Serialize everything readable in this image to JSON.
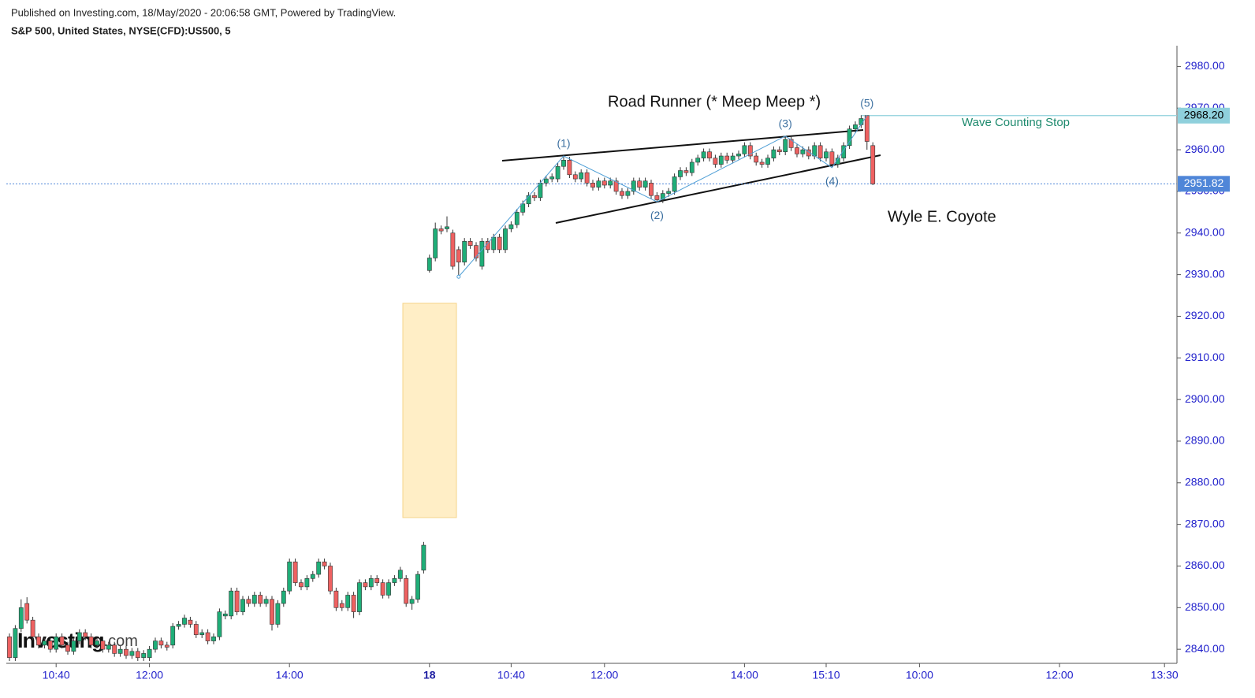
{
  "header": {
    "published": "Published on Investing.com, 18/May/2020 - 20:06:58 GMT, Powered by TradingView.",
    "symbol": "S&P 500, United States, NYSE(CFD):US500, 5"
  },
  "chart_data": {
    "type": "candlestick",
    "watermark": {
      "brand": "Investing",
      "suffix": ".com"
    },
    "up_color": "#1fae78",
    "down_color": "#ee6161",
    "ylim": [
      2837,
      2985
    ],
    "yticks": [
      {
        "value": 2840,
        "label": "2840.00"
      },
      {
        "value": 2850,
        "label": "2850.00"
      },
      {
        "value": 2860,
        "label": "2860.00"
      },
      {
        "value": 2870,
        "label": "2870.00"
      },
      {
        "value": 2880,
        "label": "2880.00"
      },
      {
        "value": 2890,
        "label": "2890.00"
      },
      {
        "value": 2900,
        "label": "2900.00"
      },
      {
        "value": 2910,
        "label": "2910.00"
      },
      {
        "value": 2920,
        "label": "2920.00"
      },
      {
        "value": 2930,
        "label": "2930.00"
      },
      {
        "value": 2940,
        "label": "2940.00"
      },
      {
        "value": 2950,
        "label": "2950.00"
      },
      {
        "value": 2960,
        "label": "2960.00"
      },
      {
        "value": 2970,
        "label": "2970.00"
      },
      {
        "value": 2980,
        "label": "2980.00"
      }
    ],
    "categories": [
      null,
      null,
      null,
      null,
      null,
      null,
      null,
      null,
      "10:40",
      null,
      null,
      null,
      null,
      null,
      null,
      null,
      null,
      null,
      null,
      null,
      null,
      null,
      null,
      null,
      "12:00",
      null,
      null,
      null,
      null,
      null,
      null,
      null,
      null,
      null,
      null,
      null,
      null,
      null,
      null,
      null,
      null,
      null,
      null,
      null,
      null,
      null,
      null,
      null,
      "14:00",
      null,
      null,
      null,
      null,
      null,
      null,
      null,
      null,
      null,
      null,
      null,
      null,
      null,
      null,
      null,
      null,
      null,
      null,
      null,
      null,
      null,
      null,
      null,
      "18",
      null,
      null,
      null,
      null,
      null,
      null,
      null,
      null,
      null,
      null,
      null,
      null,
      null,
      "10:40",
      null,
      null,
      null,
      null,
      null,
      null,
      null,
      null,
      null,
      null,
      null,
      null,
      null,
      null,
      null,
      "12:00",
      null,
      null,
      null,
      null,
      null,
      null,
      null,
      null,
      null,
      null,
      null,
      null,
      null,
      null,
      null,
      null,
      null,
      null,
      null,
      null,
      null,
      null,
      null,
      "14:00",
      null,
      null,
      null,
      null,
      null,
      null,
      null,
      null,
      null,
      null,
      null,
      null,
      null,
      "15:10",
      null,
      null,
      null,
      null,
      null,
      null,
      null,
      null,
      null,
      null,
      null,
      null,
      null,
      null,
      null,
      "10:00",
      null,
      null,
      null,
      null,
      null,
      null,
      null,
      null,
      null,
      null,
      null,
      null,
      null,
      null,
      null,
      null,
      null,
      null,
      null,
      null,
      null,
      null,
      null,
      "12:00",
      null,
      null,
      null,
      null,
      null,
      null,
      null,
      null,
      null,
      null,
      null,
      null,
      null,
      null,
      null,
      null,
      null,
      "13:30",
      null
    ],
    "open": [
      2843,
      2838,
      2845,
      2851,
      2847,
      2843,
      2841,
      2842,
      2840,
      2843,
      2841,
      2839.5,
      2842,
      2844,
      2843,
      2841,
      2842,
      2840,
      2841,
      2839,
      2840,
      2838.5,
      2839.5,
      2838,
      2838,
      2840,
      2842,
      2841,
      2841,
      2845.5,
      2846,
      2847,
      2846,
      2843.5,
      2844,
      2842,
      2843,
      2848,
      2848,
      2854,
      2849,
      2852,
      2851,
      2853,
      2851,
      2852,
      2846,
      2851,
      2854,
      2861,
      2856,
      2855,
      2857,
      2858,
      2861,
      2860,
      2854,
      2851,
      2850,
      2853,
      2849,
      2856,
      2855,
      2857,
      2856,
      2853,
      2856,
      2857,
      2857,
      2851,
      2852,
      2859,
      2931,
      2934,
      2941,
      2941,
      2940,
      2936,
      2933,
      2938,
      2937,
      2932,
      2938,
      2936,
      2939,
      2936,
      2941,
      2942,
      2945,
      2947,
      2949,
      2948.5,
      2952,
      2953,
      2953,
      2956,
      2957.5,
      2954,
      2953,
      2954.5,
      2952,
      2951,
      2952.5,
      2951.5,
      2952.5,
      2950,
      2949,
      2950,
      2952.5,
      2951,
      2952,
      2949,
      2948,
      2949.5,
      2950,
      2953.5,
      2955,
      2954.5,
      2957,
      2958,
      2959.5,
      2958,
      2956.5,
      2958.5,
      2957.5,
      2958.5,
      2959,
      2961,
      2958.5,
      2957,
      2956.5,
      2958,
      2960,
      2959.5,
      2962.5,
      2960.5,
      2959,
      2960,
      2958.5,
      2961,
      2958,
      2959.5,
      2956.5,
      2958,
      2961,
      2965,
      2966,
      2968.2,
      2961,
      null,
      null,
      null,
      null,
      null,
      null,
      null,
      null,
      null,
      null,
      null,
      null,
      null,
      null,
      null,
      null,
      null,
      null,
      null,
      null,
      null,
      null,
      null,
      null,
      null,
      null,
      null,
      null,
      null,
      null,
      null,
      null,
      null,
      null,
      null,
      null,
      null,
      null,
      null,
      null,
      null,
      null,
      null,
      null,
      null,
      null,
      null,
      null,
      null,
      null,
      null
    ],
    "high": [
      2843.8,
      2845.8,
      2852,
      2852.5,
      2847.8,
      2843.8,
      2842.8,
      2842.8,
      2843.8,
      2843.8,
      2841.8,
      2842.8,
      2844.8,
      2844.8,
      2843.8,
      2842.8,
      2842.8,
      2841.8,
      2841.8,
      2840.8,
      2840.8,
      2840.3,
      2840.3,
      2839.8,
      2840.8,
      2842.8,
      2842.8,
      2841.8,
      2846.3,
      2846.8,
      2848.3,
      2847.8,
      2846.8,
      2844.8,
      2844.8,
      2843.8,
      2849.8,
      2849.3,
      2854.8,
      2854.8,
      2852.8,
      2852.8,
      2853.8,
      2853.8,
      2852.8,
      2852.8,
      2851.8,
      2854.8,
      2861.8,
      2861.8,
      2856.8,
      2857.8,
      2858.8,
      2861.8,
      2861.8,
      2860.8,
      2854.8,
      2851.8,
      2853.8,
      2853.8,
      2856.8,
      2856.8,
      2857.8,
      2857.8,
      2856.8,
      2856.8,
      2857.8,
      2859.8,
      2857.8,
      2852.8,
      2858.8,
      2865.8,
      2934.8,
      2942.5,
      2941.8,
      2944,
      2940.8,
      2936.8,
      2938.8,
      2938.8,
      2937.8,
      2938.8,
      2938.8,
      2939.8,
      2939.8,
      2941.8,
      2942.8,
      2945.8,
      2947.8,
      2949.8,
      2949.8,
      2952.8,
      2953.8,
      2954.3,
      2956.8,
      2958.5,
      2958.3,
      2954.8,
      2955.3,
      2955.3,
      2952.8,
      2953.3,
      2953.3,
      2953.3,
      2953.3,
      2950.8,
      2950.8,
      2953.3,
      2953.3,
      2953.3,
      2952.8,
      2949.8,
      2950.3,
      2950.8,
      2954.3,
      2955.8,
      2955.8,
      2957.8,
      2958.8,
      2960.3,
      2960.3,
      2958.8,
      2959.3,
      2959.3,
      2959.3,
      2959.8,
      2961.8,
      2961.8,
      2959.3,
      2957.8,
      2958.8,
      2960.8,
      2960.8,
      2963.3,
      2963.3,
      2961.3,
      2960.8,
      2960.8,
      2961.8,
      2961.8,
      2960.3,
      2960.3,
      2958.8,
      2961.8,
      2965.8,
      2966.8,
      2968.3,
      2968.2,
      2961.8,
      null,
      null,
      null,
      null,
      null,
      null,
      null,
      null,
      null,
      null,
      null,
      null,
      null,
      null,
      null,
      null,
      null,
      null,
      null,
      null,
      null,
      null,
      null,
      null,
      null,
      null,
      null,
      null,
      null,
      null,
      null,
      null,
      null,
      null,
      null,
      null,
      null,
      null,
      null,
      null,
      null,
      null,
      null,
      null,
      null,
      null,
      null,
      null,
      null,
      null,
      null
    ],
    "low": [
      2837.2,
      2837.2,
      2844.2,
      2846.2,
      2842.2,
      2840.2,
      2840.2,
      2839.2,
      2839.2,
      2840.2,
      2838.7,
      2838.7,
      2841.2,
      2842.2,
      2840.2,
      2840.2,
      2839.2,
      2839.2,
      2838.2,
      2838.2,
      2837.7,
      2837.7,
      2837.2,
      2837.2,
      2837.2,
      2839.2,
      2840.2,
      2839.7,
      2840.2,
      2844.7,
      2845.2,
      2845.2,
      2842.7,
      2842.7,
      2841.2,
      2841.2,
      2842.2,
      2847.2,
      2847.2,
      2848.2,
      2848.2,
      2850.2,
      2850.2,
      2850.2,
      2850.2,
      2844.5,
      2845.2,
      2850.2,
      2853.2,
      2855.2,
      2854.2,
      2854.2,
      2856.2,
      2857.2,
      2859.2,
      2853.2,
      2849.2,
      2849.2,
      2849.2,
      2847.5,
      2848.2,
      2854.2,
      2854.2,
      2855.2,
      2852.2,
      2852.2,
      2855.2,
      2856.2,
      2850.2,
      2849.5,
      2851.2,
      2858.2,
      2930.5,
      2933.2,
      2939.7,
      2940.2,
      2931.2,
      2929.5,
      2932.2,
      2936.2,
      2933.2,
      2931.2,
      2935.2,
      2935.2,
      2935.2,
      2935.2,
      2940.2,
      2941.2,
      2944.2,
      2946.2,
      2947.7,
      2947.7,
      2951.2,
      2952.2,
      2952.2,
      2955.2,
      2953.2,
      2952.2,
      2952.2,
      2951.2,
      2950.2,
      2950.2,
      2950.7,
      2950.7,
      2949.2,
      2948.2,
      2948.2,
      2949.2,
      2950.2,
      2950.2,
      2948.2,
      2947.5,
      2947.2,
      2948.7,
      2949.2,
      2952.7,
      2953.7,
      2953.7,
      2956.2,
      2957.2,
      2957.2,
      2955.7,
      2955.7,
      2956.7,
      2956.7,
      2957.7,
      2958.2,
      2957.7,
      2956.2,
      2955.7,
      2955.7,
      2957.2,
      2958.7,
      2958.7,
      2959.7,
      2958.2,
      2958.2,
      2957.7,
      2957.7,
      2957.2,
      2957.2,
      2955.7,
      2955.7,
      2957.2,
      2960.2,
      2964.2,
      2965.2,
      2960,
      2951.5,
      null,
      null,
      null,
      null,
      null,
      null,
      null,
      null,
      null,
      null,
      null,
      null,
      null,
      null,
      null,
      null,
      null,
      null,
      null,
      null,
      null,
      null,
      null,
      null,
      null,
      null,
      null,
      null,
      null,
      null,
      null,
      null,
      null,
      null,
      null,
      null,
      null,
      null,
      null,
      null,
      null,
      null,
      null,
      null,
      null,
      null,
      null,
      null,
      null,
      null,
      null
    ],
    "close": [
      2838,
      2845,
      2850,
      2847,
      2843,
      2841,
      2842,
      2840,
      2843,
      2841,
      2839.5,
      2842,
      2844,
      2843,
      2841,
      2842,
      2840,
      2841,
      2839,
      2840,
      2838.5,
      2839.5,
      2838,
      2839,
      2840,
      2842,
      2841,
      2840.5,
      2845.5,
      2846,
      2847.5,
      2846,
      2843.5,
      2844,
      2842,
      2843,
      2849,
      2848.5,
      2854,
      2849,
      2852,
      2851,
      2853,
      2851,
      2852,
      2846,
      2851,
      2854,
      2861,
      2856,
      2855,
      2857,
      2858,
      2861,
      2860,
      2854,
      2850,
      2850,
      2853,
      2849,
      2856,
      2855,
      2857,
      2856,
      2853,
      2856,
      2857,
      2859,
      2851,
      2852,
      2858,
      2865,
      2934,
      2941,
      2940.5,
      2941.5,
      2932,
      2933,
      2938,
      2937,
      2934,
      2938,
      2936,
      2939,
      2936,
      2941,
      2942,
      2945,
      2947,
      2949,
      2948.5,
      2952,
      2953,
      2953.5,
      2956,
      2957.5,
      2954,
      2953,
      2954.5,
      2952,
      2951,
      2952.5,
      2951.5,
      2952.5,
      2950,
      2949,
      2950,
      2952.5,
      2951,
      2952.5,
      2949,
      2948,
      2949.5,
      2950,
      2953.5,
      2955,
      2954.5,
      2957,
      2958,
      2959.5,
      2958,
      2956.5,
      2958.5,
      2957.5,
      2958.5,
      2959,
      2961,
      2958.5,
      2957,
      2956.5,
      2958,
      2960,
      2959.5,
      2962.5,
      2960.5,
      2959,
      2960,
      2958.5,
      2961,
      2958,
      2959.5,
      2956.5,
      2958,
      2961,
      2965,
      2966,
      2967.5,
      2962,
      2951.82,
      null,
      null,
      null,
      null,
      null,
      null,
      null,
      null,
      null,
      null,
      null,
      null,
      null,
      null,
      null,
      null,
      null,
      null,
      null,
      null,
      null,
      null,
      null,
      null,
      null,
      null,
      null,
      null,
      null,
      null,
      null,
      null,
      null,
      null,
      null,
      null,
      null,
      null,
      null,
      null,
      null,
      null,
      null,
      null,
      null,
      null,
      null,
      null,
      null,
      null,
      null
    ],
    "price_lines": [
      {
        "value": 2968.2,
        "label": "2968.20",
        "color": "#8fd0dc",
        "text_color": "#000000"
      },
      {
        "value": 2951.82,
        "label": "2951.82",
        "color": "#4f86d8",
        "text_color": "#ffffff"
      }
    ],
    "annotations": {
      "pattern": "Road Runner (* Meep Meep *)",
      "breakdown": "Wyle E. Coyote",
      "stop": "Wave Counting Stop"
    },
    "waves": [
      "(1)",
      "(2)",
      "(3)",
      "(4)",
      "(5)"
    ]
  }
}
